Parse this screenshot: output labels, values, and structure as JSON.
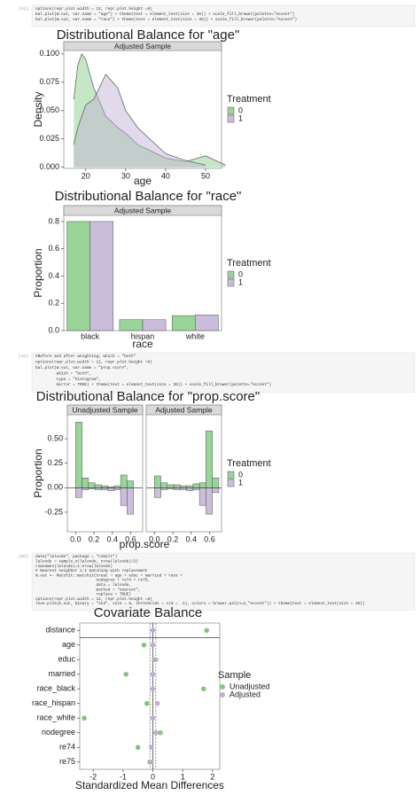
{
  "cells": [
    {
      "prompt": "[41]:",
      "code": [
        "options(repr.plot.width = 12, repr.plot.height =8)",
        "bal.plot(W.out, var.name = \"age\") + theme(text = element_text(size = 36)) + scale_fill_brewer(palette=\"Accent\")",
        "bal.plot(W.out, var.name = \"race\") + theme(text = element_text(size = 36)) + scale_fill_brewer(palette=\"Accent\")"
      ]
    },
    {
      "prompt": "[42]:",
      "code": [
        "#Before and after weighting; which = \"both\"",
        "options(repr.plot.width = 12, repr.plot.height =8)",
        "bal.plot(W.out, var.name = \"prop.score\",",
        "         which = \"both\",",
        "         type = \"histogram\",",
        "         mirror = TRUE) + theme(text = element_text(size = 36)) + scale_fill_brewer(palette=\"Accent\")"
      ]
    },
    {
      "prompt": "[56]:",
      "code": [
        "data(\"lalonde\", package = \"cobalt\")",
        "lalonde = sample_n(lalonde, nrow(lalonde)/2)",
        "rownames(lalonde)=1:nrow(lalonde)",
        "# Nearest neighbor 1:1 matching with replacement",
        "m.out <- MatchIt::matchit(treat ~ age + educ + married + race +",
        "                          nodegree + re74 + re75,",
        "                          data = lalonde,",
        "                          method = \"nearest\",",
        "                          replace = TRUE)",
        "options(repr.plot.width = 12, repr.plot.height =8)",
        "love.plot(m.out, binary = \"std\", size = 8, thresholds = c(m = .1), colors = brewer.pal(n=2,\"Accent\")) + theme(text = element_text(size = 36))"
      ]
    }
  ],
  "chart_data": [
    {
      "type": "density",
      "title": "Distributional Balance for \"age\"",
      "strip": "Adjusted Sample",
      "x_label": "age",
      "y_label": "Density",
      "legend_title": "Treatment",
      "x": [
        17,
        18,
        19,
        20,
        22,
        25,
        28,
        30,
        33,
        36,
        40,
        45,
        50,
        55
      ],
      "series": [
        {
          "name": "0",
          "color": "#7fc97f",
          "values": [
            0.06,
            0.09,
            0.1,
            0.095,
            0.07,
            0.045,
            0.035,
            0.03,
            0.02,
            0.015,
            0.008,
            0.005,
            0.01,
            0.002
          ]
        },
        {
          "name": "1",
          "color": "#beaed4",
          "values": [
            0.02,
            0.035,
            0.045,
            0.055,
            0.06,
            0.082,
            0.07,
            0.05,
            0.035,
            0.025,
            0.012,
            0.006,
            0.002,
            null
          ]
        }
      ],
      "xlim": [
        14.5,
        54
      ],
      "ylim": [
        -0.001,
        0.103
      ],
      "xticks": [
        20,
        30,
        40,
        50
      ],
      "yticks": [
        {
          "value": 0,
          "label": "0.000"
        },
        {
          "value": 0.025,
          "label": "0.025"
        },
        {
          "value": 0.05,
          "label": "0.050"
        },
        {
          "value": 0.075,
          "label": "0.075"
        },
        {
          "value": 0.1,
          "label": "0.100"
        }
      ]
    },
    {
      "type": "bar",
      "title": "Distributional Balance for \"race\"",
      "strip": "Adjusted Sample",
      "x_label": "race",
      "y_label": "Proportion",
      "legend_title": "Treatment",
      "categories": [
        "black",
        "hispan",
        "white"
      ],
      "series": [
        {
          "name": "0",
          "color": "#7fc97f",
          "values": [
            0.8,
            0.08,
            0.11
          ]
        },
        {
          "name": "1",
          "color": "#beaed4",
          "values": [
            0.8,
            0.08,
            0.115
          ]
        }
      ],
      "ylim": [
        0,
        0.845
      ],
      "yticks": [
        {
          "value": 0,
          "label": "0.0"
        },
        0.2,
        0.4,
        0.6,
        0.8
      ]
    },
    {
      "type": "histogram",
      "title": "Distributional Balance for \"prop.score\"",
      "x_label": "prop.score",
      "y_label": "Proportion",
      "legend_title": "Treatment",
      "bins": [
        0,
        0.07,
        0.14,
        0.21,
        0.28,
        0.35,
        0.42,
        0.49,
        0.56,
        0.63,
        0.7
      ],
      "facets": [
        {
          "strip": "Unadjusted Sample",
          "series": [
            {
              "name": "0",
              "color": "#7fc97f",
              "values": [
                0.67,
                0.1,
                0.05,
                0.03,
                0.02,
                0.01,
                0.02,
                0.13,
                0.07,
                0
              ]
            },
            {
              "name": "1",
              "color": "#beaed4",
              "values": [
                -0.1,
                -0.02,
                -0.01,
                -0.02,
                -0.02,
                -0.03,
                -0.02,
                -0.18,
                -0.27,
                0
              ]
            }
          ]
        },
        {
          "strip": "Adjusted Sample",
          "series": [
            {
              "name": "0",
              "color": "#7fc97f",
              "values": [
                0.12,
                0.05,
                0.03,
                0.03,
                0.02,
                0.02,
                0.04,
                0.05,
                0.58,
                0.1
              ]
            },
            {
              "name": "1",
              "color": "#beaed4",
              "values": [
                -0.1,
                -0.02,
                -0.01,
                -0.02,
                -0.02,
                -0.03,
                -0.02,
                -0.18,
                -0.27,
                -0.05
              ]
            }
          ]
        }
      ],
      "xlim": [
        -0.09,
        0.73
      ],
      "ylim": [
        -0.45,
        0.745
      ],
      "xticks": [
        {
          "value": 0,
          "label": "0.0"
        },
        0.2,
        0.4,
        0.6
      ],
      "yticks": [
        {
          "value": 0.5,
          "label": "0.50"
        },
        0.25,
        {
          "value": 0,
          "label": "0.00"
        },
        -0.25
      ]
    },
    {
      "type": "dot",
      "title": "Covariate Balance",
      "x_label": "Standardized Mean Differences",
      "legend_title": "Sample",
      "categories": [
        "distance",
        "age",
        "educ",
        "married",
        "race_black",
        "race_hispan",
        "race_white",
        "nodegree",
        "re74",
        "re75"
      ],
      "series": [
        {
          "name": "Unadjusted",
          "color": "#7fc97f",
          "values": [
            1.8,
            -0.3,
            0.05,
            -0.9,
            1.7,
            -0.2,
            -2.3,
            0.25,
            -0.5,
            -0.1
          ]
        },
        {
          "name": "Adjusted",
          "color": "#beaed4",
          "values": [
            0,
            0,
            0.1,
            0,
            0,
            0.15,
            0,
            0.1,
            -0.05,
            -0.05
          ]
        }
      ],
      "thresholds": [
        -0.1,
        0.1
      ],
      "xlim": [
        -2.45,
        2.24
      ],
      "xticks": [
        -2,
        -1,
        0,
        1,
        2
      ]
    }
  ]
}
